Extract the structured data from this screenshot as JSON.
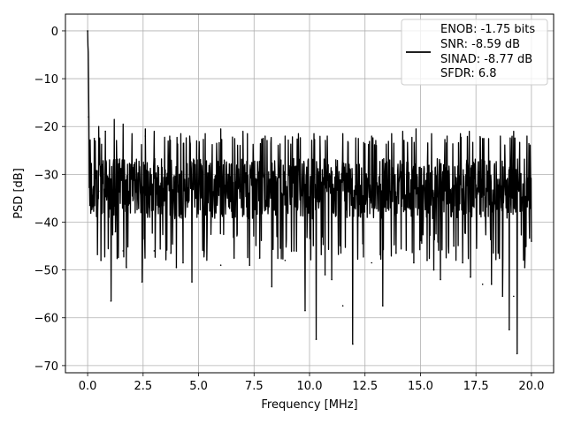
{
  "chart_data": {
    "type": "line",
    "title": "",
    "xlabel": "Frequency [MHz]",
    "ylabel": "PSD [dB]",
    "xlim": [
      -1.0,
      21.0
    ],
    "ylim": [
      -71.5,
      3.5
    ],
    "xticks": [
      0.0,
      2.5,
      5.0,
      7.5,
      10.0,
      12.5,
      15.0,
      17.5,
      20.0
    ],
    "xtick_labels": [
      "0.0",
      "2.5",
      "5.0",
      "7.5",
      "10.0",
      "12.5",
      "15.0",
      "17.5",
      "20.0"
    ],
    "yticks": [
      0,
      -10,
      -20,
      -30,
      -40,
      -50,
      -60,
      -70
    ],
    "ytick_labels": [
      "0",
      "−10",
      "−20",
      "−30",
      "−40",
      "−50",
      "−60",
      "−70"
    ],
    "grid": true,
    "legend_position": "top-right",
    "legend": [
      "ENOB: -1.75 bits",
      "SNR: -8.59 dB",
      "SINAD: -8.77 dB",
      "SFDR: 6.8"
    ],
    "series_color": "#000000",
    "series": [
      {
        "x_range": [
          0.0,
          20.0
        ],
        "peak": {
          "x": 0.0,
          "y": 0.0
        },
        "points": [
          [
            0.0,
            0.0
          ],
          [
            0.05,
            -18.0
          ],
          [
            0.1,
            -36.5
          ],
          [
            0.3,
            -22.5
          ],
          [
            0.5,
            -33.5
          ],
          [
            0.6,
            -48.0
          ],
          [
            0.8,
            -21.0
          ],
          [
            1.05,
            -56.5
          ],
          [
            1.25,
            -42.0
          ],
          [
            1.6,
            -46.0
          ],
          [
            1.75,
            -49.5
          ],
          [
            2.45,
            -52.5
          ],
          [
            2.6,
            -22.0
          ],
          [
            3.0,
            -46.0
          ],
          [
            3.75,
            -46.5
          ],
          [
            4.0,
            -49.5
          ],
          [
            4.15,
            -30.0
          ],
          [
            4.3,
            -48.5
          ],
          [
            4.7,
            -52.5
          ],
          [
            5.25,
            -46.0
          ],
          [
            6.0,
            -49.0
          ],
          [
            6.6,
            -47.5
          ],
          [
            7.3,
            -49.0
          ],
          [
            7.75,
            -47.5
          ],
          [
            8.3,
            -53.5
          ],
          [
            8.9,
            -48.0
          ],
          [
            9.3,
            -46.0
          ],
          [
            9.8,
            -58.5
          ],
          [
            10.3,
            -64.5
          ],
          [
            10.7,
            -51.0
          ],
          [
            11.0,
            -52.0
          ],
          [
            11.5,
            -57.5
          ],
          [
            11.95,
            -65.5
          ],
          [
            12.4,
            -44.5
          ],
          [
            12.8,
            -48.5
          ],
          [
            13.3,
            -57.5
          ],
          [
            13.9,
            -46.5
          ],
          [
            14.7,
            -48.5
          ],
          [
            15.3,
            -48.0
          ],
          [
            15.6,
            -50.0
          ],
          [
            15.9,
            -52.0
          ],
          [
            16.5,
            -45.0
          ],
          [
            16.9,
            -48.5
          ],
          [
            17.25,
            -51.5
          ],
          [
            17.8,
            -53.0
          ],
          [
            18.2,
            -53.0
          ],
          [
            18.7,
            -55.5
          ],
          [
            19.0,
            -62.5
          ],
          [
            19.2,
            -55.5
          ],
          [
            19.35,
            -67.5
          ],
          [
            19.7,
            -49.5
          ],
          [
            20.0,
            -44.0
          ]
        ],
        "typical_range": [
          -42.0,
          -24.0
        ],
        "upper_peaks": [
          [
            0.5,
            -20.0
          ],
          [
            1.2,
            -18.5
          ],
          [
            1.6,
            -19.5
          ],
          [
            2.0,
            -21.5
          ],
          [
            2.6,
            -20.5
          ],
          [
            3.0,
            -21.0
          ],
          [
            3.7,
            -22.0
          ],
          [
            4.2,
            -21.5
          ],
          [
            4.6,
            -22.0
          ],
          [
            5.3,
            -21.5
          ],
          [
            6.0,
            -20.5
          ],
          [
            7.0,
            -21.0
          ],
          [
            7.2,
            -21.5
          ],
          [
            8.0,
            -22.0
          ],
          [
            8.9,
            -22.0
          ],
          [
            9.5,
            -21.5
          ],
          [
            10.2,
            -21.5
          ],
          [
            10.8,
            -22.0
          ],
          [
            11.5,
            -21.5
          ],
          [
            12.2,
            -22.5
          ],
          [
            12.8,
            -22.0
          ],
          [
            13.7,
            -21.5
          ],
          [
            14.2,
            -21.0
          ],
          [
            14.8,
            -20.5
          ],
          [
            15.5,
            -21.5
          ],
          [
            16.2,
            -22.0
          ],
          [
            16.8,
            -21.5
          ],
          [
            17.2,
            -21.0
          ],
          [
            17.8,
            -22.5
          ],
          [
            18.6,
            -22.0
          ],
          [
            19.2,
            -21.0
          ],
          [
            19.8,
            -22.0
          ]
        ]
      }
    ]
  }
}
